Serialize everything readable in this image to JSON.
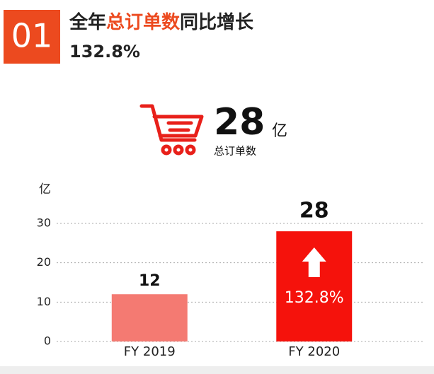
{
  "header": {
    "number": "01",
    "title_parts": [
      "全年",
      "总订单数",
      "同比增长"
    ],
    "subtitle": "132.8%"
  },
  "summary": {
    "value": 28,
    "unit": "亿",
    "label": "总订单数"
  },
  "chart_data": {
    "type": "bar",
    "y_unit": "亿",
    "categories": [
      "FY  2019",
      "FY  2020"
    ],
    "values": [
      12,
      28
    ],
    "colors": [
      "#f47a72",
      "#f5120c"
    ],
    "ylim": [
      0,
      30
    ],
    "yticks": [
      0,
      10,
      20,
      30
    ],
    "grid": true,
    "annotation": "132.8%"
  }
}
